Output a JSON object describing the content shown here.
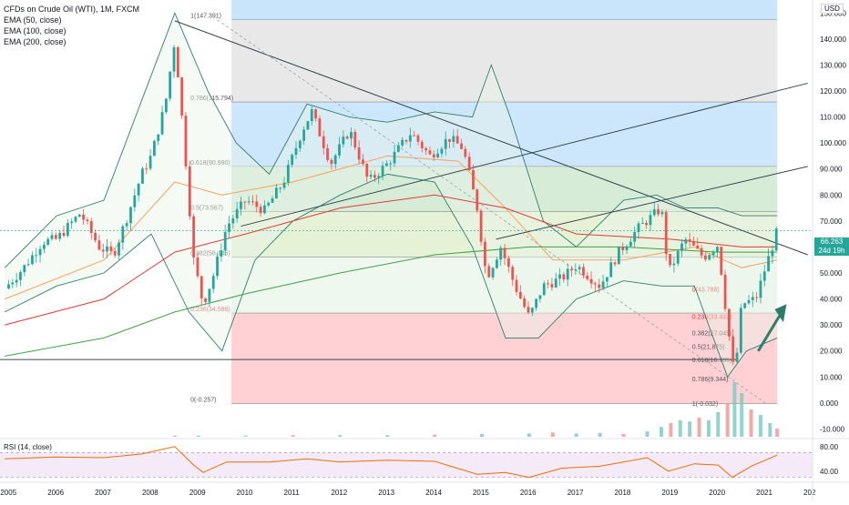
{
  "legend": {
    "title": "CFDs on Crude Oil (WTI), 1M, FXCM",
    "lines": [
      "EMA (50, close)",
      "EMA (100, close)",
      "EMA (200, close)"
    ]
  },
  "currency": "USD",
  "last_price": {
    "value": "66.263",
    "countdown": "24d 19h"
  },
  "rsi_label": "RSI (14, close)",
  "colors": {
    "up": "#26a69a",
    "down": "#ef5350",
    "text": "#131722",
    "grid_text": "#131722",
    "fib_blue": "#bbdefb",
    "fib_green": "#c8e6c9",
    "fib_red": "#ffcdd2",
    "fib_gray": "#e0e0e0"
  },
  "chart_data": [
    {
      "type": "candlestick",
      "title": "CFDs on Crude Oil (WTI), 1M, FXCM",
      "x_ticks": [
        "2005",
        "2006",
        "2007",
        "2008",
        "2009",
        "2010",
        "2011",
        "2012",
        "2013",
        "2014",
        "2015",
        "2016",
        "2017",
        "2018",
        "2019",
        "2020",
        "2021",
        "202"
      ],
      "y_ticks": [
        "-10.000",
        "0.000",
        "10.000",
        "20.000",
        "30.000",
        "40.000",
        "50.000",
        "60.000",
        "70.000",
        "80.000",
        "90.000",
        "100.000",
        "110.000",
        "120.000",
        "130.000",
        "140.000",
        "150.000"
      ],
      "ylim": [
        -13,
        155
      ],
      "xlim": [
        2004.8,
        2022.0
      ],
      "price_path": [
        [
          2004.9,
          44
        ],
        [
          2005.3,
          52
        ],
        [
          2005.7,
          62
        ],
        [
          2006.0,
          63
        ],
        [
          2006.5,
          73
        ],
        [
          2006.9,
          60
        ],
        [
          2007.2,
          57
        ],
        [
          2007.5,
          72
        ],
        [
          2007.8,
          88
        ],
        [
          2008.0,
          95
        ],
        [
          2008.3,
          115
        ],
        [
          2008.5,
          140
        ],
        [
          2008.7,
          100
        ],
        [
          2008.9,
          55
        ],
        [
          2009.1,
          38
        ],
        [
          2009.3,
          48
        ],
        [
          2009.6,
          68
        ],
        [
          2010.0,
          78
        ],
        [
          2010.4,
          74
        ],
        [
          2010.8,
          85
        ],
        [
          2011.2,
          105
        ],
        [
          2011.4,
          112
        ],
        [
          2011.8,
          92
        ],
        [
          2012.2,
          105
        ],
        [
          2012.6,
          85
        ],
        [
          2013.0,
          92
        ],
        [
          2013.5,
          104
        ],
        [
          2013.9,
          95
        ],
        [
          2014.3,
          102
        ],
        [
          2014.6,
          98
        ],
        [
          2014.9,
          75
        ],
        [
          2015.1,
          48
        ],
        [
          2015.4,
          60
        ],
        [
          2015.7,
          45
        ],
        [
          2016.0,
          33
        ],
        [
          2016.3,
          45
        ],
        [
          2016.7,
          48
        ],
        [
          2017.0,
          53
        ],
        [
          2017.5,
          45
        ],
        [
          2017.9,
          58
        ],
        [
          2018.3,
          67
        ],
        [
          2018.8,
          75
        ],
        [
          2018.95,
          50
        ],
        [
          2019.3,
          63
        ],
        [
          2019.7,
          56
        ],
        [
          2020.0,
          61
        ],
        [
          2020.2,
          30
        ],
        [
          2020.35,
          10
        ],
        [
          2020.5,
          38
        ],
        [
          2020.8,
          40
        ],
        [
          2021.0,
          52
        ],
        [
          2021.2,
          63
        ],
        [
          2021.25,
          66.263
        ]
      ],
      "ema": [
        {
          "name": "EMA (50, close)",
          "color": "#f7a35c",
          "points": [
            [
              2004.9,
              40
            ],
            [
              2007.0,
              55
            ],
            [
              2008.5,
              85
            ],
            [
              2009.5,
              80
            ],
            [
              2011.0,
              85
            ],
            [
              2013.0,
              95
            ],
            [
              2014.5,
              93
            ],
            [
              2015.5,
              75
            ],
            [
              2016.5,
              55
            ],
            [
              2018.0,
              55
            ],
            [
              2019.5,
              60
            ],
            [
              2020.5,
              52
            ],
            [
              2021.25,
              55
            ]
          ]
        },
        {
          "name": "EMA (100, close)",
          "color": "#e53935",
          "points": [
            [
              2004.9,
              30
            ],
            [
              2007.0,
              40
            ],
            [
              2008.5,
              58
            ],
            [
              2010.0,
              65
            ],
            [
              2012.0,
              75
            ],
            [
              2014.0,
              80
            ],
            [
              2015.5,
              75
            ],
            [
              2017.0,
              65
            ],
            [
              2019.0,
              63
            ],
            [
              2020.5,
              60
            ],
            [
              2021.25,
              60
            ]
          ]
        },
        {
          "name": "EMA (200, close)",
          "color": "#43a047",
          "points": [
            [
              2004.9,
              18
            ],
            [
              2007.0,
              25
            ],
            [
              2008.5,
              35
            ],
            [
              2010.0,
              42
            ],
            [
              2012.0,
              50
            ],
            [
              2014.0,
              57
            ],
            [
              2016.0,
              60
            ],
            [
              2018.0,
              60
            ],
            [
              2020.0,
              58
            ],
            [
              2021.25,
              58
            ]
          ]
        }
      ],
      "bollinger": {
        "upper": [
          [
            2004.9,
            52
          ],
          [
            2006.0,
            72
          ],
          [
            2007.0,
            78
          ],
          [
            2008.5,
            150
          ],
          [
            2009.2,
            120
          ],
          [
            2009.8,
            100
          ],
          [
            2010.5,
            88
          ],
          [
            2011.3,
            115
          ],
          [
            2012.2,
            110
          ],
          [
            2013.0,
            108
          ],
          [
            2014.0,
            112
          ],
          [
            2014.8,
            110
          ],
          [
            2015.2,
            130
          ],
          [
            2015.6,
            110
          ],
          [
            2016.3,
            70
          ],
          [
            2017.0,
            60
          ],
          [
            2018.0,
            78
          ],
          [
            2018.7,
            80
          ],
          [
            2019.3,
            75
          ],
          [
            2020.0,
            75
          ],
          [
            2020.5,
            72
          ],
          [
            2021.25,
            72
          ]
        ],
        "lower": [
          [
            2004.9,
            35
          ],
          [
            2006.0,
            45
          ],
          [
            2007.0,
            50
          ],
          [
            2008.0,
            65
          ],
          [
            2008.8,
            35
          ],
          [
            2009.5,
            20
          ],
          [
            2010.2,
            55
          ],
          [
            2011.0,
            70
          ],
          [
            2012.0,
            80
          ],
          [
            2013.0,
            88
          ],
          [
            2014.0,
            85
          ],
          [
            2014.8,
            60
          ],
          [
            2015.5,
            25
          ],
          [
            2016.2,
            25
          ],
          [
            2017.0,
            40
          ],
          [
            2018.0,
            47
          ],
          [
            2018.8,
            45
          ],
          [
            2019.5,
            45
          ],
          [
            2020.2,
            10
          ],
          [
            2020.6,
            20
          ],
          [
            2021.25,
            25
          ]
        ]
      },
      "fib_levels": [
        {
          "label": "1(147.391)",
          "value": 147.391,
          "fill": "#e0e0e0"
        },
        {
          "label": "0.786(115.794)",
          "value": 115.794,
          "fill": "#bbdefb"
        },
        {
          "label": "0.618(90.990)",
          "value": 90.99,
          "fill": "#c8e6c9"
        },
        {
          "label": "0.5(73.567)",
          "value": 73.567,
          "fill": "#dcedc8"
        },
        {
          "label": "0.382(56.145)",
          "value": 56.145,
          "fill": "#e8f5e9"
        },
        {
          "label": "0.236(34.588)",
          "value": 34.588,
          "fill": "#ffcdd2"
        },
        {
          "label": "0(-0.257)",
          "value": -0.257,
          "fill": null
        }
      ],
      "fib_levels_2": [
        {
          "label": "0(43.788)",
          "value": 43.788
        },
        {
          "label": "0.236(33.442)",
          "value": 33.442
        },
        {
          "label": "0.382(27.045)",
          "value": 27.045
        },
        {
          "label": "0.5(21.875)",
          "value": 21.875
        },
        {
          "label": "0.618(16.705)",
          "value": 16.705
        },
        {
          "label": "0.786(9.344)",
          "value": 9.344
        },
        {
          "label": "1(-0.032)",
          "value": -0.032
        }
      ],
      "trendlines": [
        {
          "from": [
            2008.5,
            147
          ],
          "to": [
            2021.9,
            57
          ]
        },
        {
          "from": [
            2009.9,
            68
          ],
          "to": [
            2021.9,
            123
          ]
        },
        {
          "from": [
            2015.3,
            63
          ],
          "to": [
            2021.9,
            91
          ]
        },
        {
          "from": [
            2004.8,
            16.7
          ],
          "to": [
            2020.4,
            16.7
          ]
        }
      ],
      "volume": [
        [
          2008.5,
          2
        ],
        [
          2009.0,
          2
        ],
        [
          2010.0,
          2
        ],
        [
          2011.0,
          3
        ],
        [
          2012.0,
          3
        ],
        [
          2013.0,
          3
        ],
        [
          2014.0,
          4
        ],
        [
          2015.0,
          5
        ],
        [
          2016.0,
          6
        ],
        [
          2016.5,
          8
        ],
        [
          2017.0,
          6
        ],
        [
          2017.5,
          7
        ],
        [
          2018.0,
          5
        ],
        [
          2018.5,
          10
        ],
        [
          2018.8,
          18
        ],
        [
          2019.0,
          25
        ],
        [
          2019.2,
          30
        ],
        [
          2019.4,
          28
        ],
        [
          2019.6,
          35
        ],
        [
          2019.8,
          30
        ],
        [
          2020.0,
          45
        ],
        [
          2020.2,
          60
        ],
        [
          2020.35,
          100
        ],
        [
          2020.5,
          80
        ],
        [
          2020.7,
          50
        ],
        [
          2020.9,
          40
        ],
        [
          2021.1,
          25
        ],
        [
          2021.25,
          15
        ]
      ]
    },
    {
      "type": "line",
      "title": "RSI (14, close)",
      "y_ticks": [
        "80.00",
        "40.00"
      ],
      "ylim": [
        25,
        90
      ],
      "band": [
        30,
        70
      ],
      "series": [
        {
          "values": [
            [
              2004.9,
              60
            ],
            [
              2006.0,
              63
            ],
            [
              2007.0,
              62
            ],
            [
              2007.8,
              68
            ],
            [
              2008.5,
              80
            ],
            [
              2008.9,
              50
            ],
            [
              2009.1,
              38
            ],
            [
              2009.6,
              55
            ],
            [
              2010.5,
              55
            ],
            [
              2011.3,
              60
            ],
            [
              2012.0,
              55
            ],
            [
              2013.0,
              58
            ],
            [
              2014.0,
              56
            ],
            [
              2014.9,
              35
            ],
            [
              2015.5,
              38
            ],
            [
              2016.0,
              30
            ],
            [
              2016.7,
              45
            ],
            [
              2017.5,
              48
            ],
            [
              2018.5,
              62
            ],
            [
              2018.95,
              40
            ],
            [
              2019.5,
              52
            ],
            [
              2020.0,
              50
            ],
            [
              2020.3,
              30
            ],
            [
              2020.7,
              48
            ],
            [
              2021.25,
              66
            ]
          ]
        }
      ]
    }
  ]
}
